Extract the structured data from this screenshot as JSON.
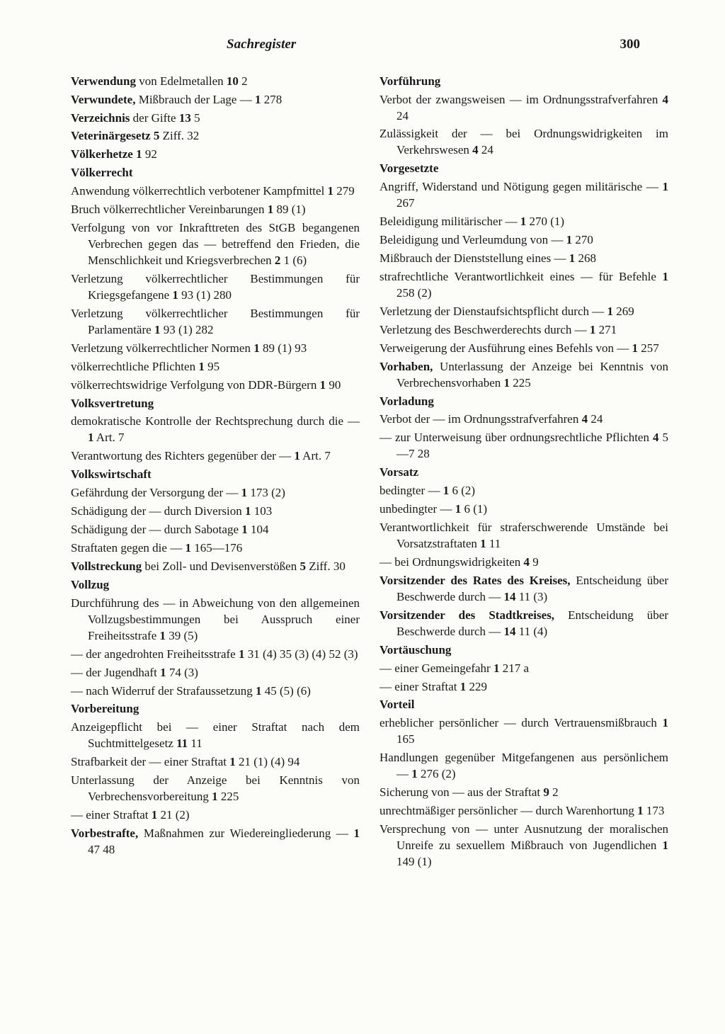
{
  "header": {
    "title": "Sachregister",
    "page": "300"
  },
  "left": [
    {
      "html": "<span class='term'>Verwendung</span> von Edelmetallen <span class='ref'>10</span> 2"
    },
    {
      "html": "<span class='term'>Verwundete,</span> Mißbrauch der Lage — <span class='ref'>1</span> 278"
    },
    {
      "html": "<span class='term'>Verzeichnis</span> der Gifte <span class='ref'>13</span> 5"
    },
    {
      "html": "<span class='term'>Veterinärgesetz</span> <span class='ref'>5</span> Ziff. 32"
    },
    {
      "html": "<span class='term'>Völkerhetze</span> <span class='ref'>1</span> 92"
    },
    {
      "html": "<span class='term'>Völkerrecht</span>"
    },
    {
      "html": "Anwendung völkerrechtlich verbotener Kampfmittel <span class='ref'>1</span> 279"
    },
    {
      "html": "Bruch völkerrechtlicher Vereinbarungen <span class='ref'>1</span> 89 (1)"
    },
    {
      "html": "Verfolgung von vor Inkrafttreten des StGB begangenen Verbrechen gegen das — betreffend den Frieden, die Menschlichkeit und Kriegsverbrechen <span class='ref'>2</span> 1 (6)"
    },
    {
      "html": "Verletzung völkerrechtlicher Bestimmungen für Kriegsgefangene <span class='ref'>1</span> 93 (1) 280"
    },
    {
      "html": "Verletzung völkerrechtlicher Bestimmungen für Parlamentäre <span class='ref'>1</span> 93 (1) 282"
    },
    {
      "html": "Verletzung völkerrechtlicher Normen <span class='ref'>1</span> 89 (1) 93"
    },
    {
      "html": "völkerrechtliche Pflichten <span class='ref'>1</span> 95"
    },
    {
      "html": "völkerrechtswidrige Verfolgung von DDR-Bürgern <span class='ref'>1</span> 90"
    },
    {
      "html": "<span class='term'>Volksvertretung</span>"
    },
    {
      "html": "demokratische Kontrolle der Rechtsprechung durch die — <span class='ref'>1</span> Art. 7"
    },
    {
      "html": "Verantwortung des Richters gegenüber der — <span class='ref'>1</span> Art. 7"
    },
    {
      "html": "<span class='term'>Volkswirtschaft</span>"
    },
    {
      "html": "Gefährdung der Versorgung der — <span class='ref'>1</span> 173 (2)"
    },
    {
      "html": "Schädigung der — durch Diversion <span class='ref'>1</span> 103"
    },
    {
      "html": "Schädigung der — durch Sabotage <span class='ref'>1</span> 104"
    },
    {
      "html": "Straftaten gegen die — <span class='ref'>1</span> 165—176"
    },
    {
      "html": "<span class='term'>Vollstreckung</span> bei Zoll- und Devisenverstößen <span class='ref'>5</span> Ziff. 30"
    },
    {
      "html": "<span class='term'>Vollzug</span>"
    },
    {
      "html": "Durchführung des — in Abweichung von den allgemeinen Vollzugsbestimmungen bei Ausspruch einer Freiheitsstrafe <span class='ref'>1</span> 39 (5)"
    },
    {
      "html": "— der angedrohten Freiheitsstrafe <span class='ref'>1</span> 31 (4) 35 (3) (4) 52 (3)"
    },
    {
      "html": "— der Jugendhaft <span class='ref'>1</span> 74 (3)"
    },
    {
      "html": "— nach Widerruf der Strafaussetzung <span class='ref'>1</span> 45 (5) (6)"
    },
    {
      "html": "<span class='term'>Vorbereitung</span>"
    },
    {
      "html": "Anzeigepflicht bei — einer Straftat nach dem Suchtmittelgesetz <span class='ref'>11</span> 11"
    },
    {
      "html": "Strafbarkeit der — einer Straftat <span class='ref'>1</span> 21 (1) (4) 94"
    },
    {
      "html": "Unterlassung der Anzeige bei Kenntnis von Verbrechensvorbereitung <span class='ref'>1</span> 225"
    },
    {
      "html": "— einer Straftat <span class='ref'>1</span> 21 (2)"
    },
    {
      "html": "<span class='term'>Vorbestrafte,</span> Maßnahmen zur Wiedereingliederung — <span class='ref'>1</span> 47 48"
    }
  ],
  "right": [
    {
      "html": "<span class='term'>Vorführung</span>"
    },
    {
      "html": "Verbot der zwangsweisen — im Ordnungsstrafverfahren <span class='ref'>4</span> 24"
    },
    {
      "html": "Zulässigkeit der — bei Ordnungswidrigkeiten im Verkehrswesen <span class='ref'>4</span> 24"
    },
    {
      "html": "<span class='term'>Vorgesetzte</span>"
    },
    {
      "html": "Angriff, Widerstand und Nötigung gegen militärische — <span class='ref'>1</span> 267"
    },
    {
      "html": "Beleidigung militärischer — <span class='ref'>1</span> 270 (1)"
    },
    {
      "html": "Beleidigung und Verleumdung von — <span class='ref'>1</span> 270"
    },
    {
      "html": "Mißbrauch der Dienststellung eines — <span class='ref'>1</span> 268"
    },
    {
      "html": "strafrechtliche Verantwortlichkeit eines — für Befehle <span class='ref'>1</span> 258 (2)"
    },
    {
      "html": "Verletzung der Dienstaufsichtspflicht durch — <span class='ref'>1</span> 269"
    },
    {
      "html": "Verletzung des Beschwerderechts durch — <span class='ref'>1</span> 271"
    },
    {
      "html": "Verweigerung der Ausführung eines Befehls von — <span class='ref'>1</span> 257"
    },
    {
      "html": "<span class='term'>Vorhaben,</span> Unterlassung der Anzeige bei Kenntnis von Verbrechensvorhaben <span class='ref'>1</span> 225"
    },
    {
      "html": "<span class='term'>Vorladung</span>"
    },
    {
      "html": "Verbot der — im Ordnungsstrafverfahren <span class='ref'>4</span> 24"
    },
    {
      "html": "— zur Unterweisung über ordnungsrechtliche Pflichten <span class='ref'>4</span> 5—7 28"
    },
    {
      "html": "<span class='term'>Vorsatz</span>"
    },
    {
      "html": "bedingter — <span class='ref'>1</span> 6 (2)"
    },
    {
      "html": "unbedingter — <span class='ref'>1</span> 6 (1)"
    },
    {
      "html": "Verantwortlichkeit für straferschwerende Umstände bei Vorsatzstraftaten <span class='ref'>1</span> 11"
    },
    {
      "html": "— bei Ordnungswidrigkeiten <span class='ref'>4</span> 9"
    },
    {
      "html": "<span class='term'>Vorsitzender des Rates des Kreises,</span> Entscheidung über Beschwerde durch — <span class='ref'>14</span> 11 (3)"
    },
    {
      "html": "<span class='term'>Vorsitzender des Stadtkreises,</span> Entscheidung über Beschwerde durch — <span class='ref'>14</span> 11 (4)"
    },
    {
      "html": "<span class='term'>Vortäuschung</span>"
    },
    {
      "html": "— einer Gemeingefahr <span class='ref'>1</span> 217 a"
    },
    {
      "html": "— einer Straftat <span class='ref'>1</span> 229"
    },
    {
      "html": "<span class='term'>Vorteil</span>"
    },
    {
      "html": "erheblicher persönlicher — durch Vertrauensmißbrauch <span class='ref'>1</span> 165"
    },
    {
      "html": "Handlungen gegenüber Mitgefangenen aus persönlichem — <span class='ref'>1</span> 276 (2)"
    },
    {
      "html": "Sicherung von — aus der Straftat <span class='ref'>9</span> 2"
    },
    {
      "html": "unrechtmäßiger persönlicher — durch Warenhortung <span class='ref'>1</span> 173"
    },
    {
      "html": "Versprechung von — unter Ausnutzung der moralischen Unreife zu sexuellem Mißbrauch von Jugendlichen <span class='ref'>1</span> 149 (1)"
    }
  ]
}
